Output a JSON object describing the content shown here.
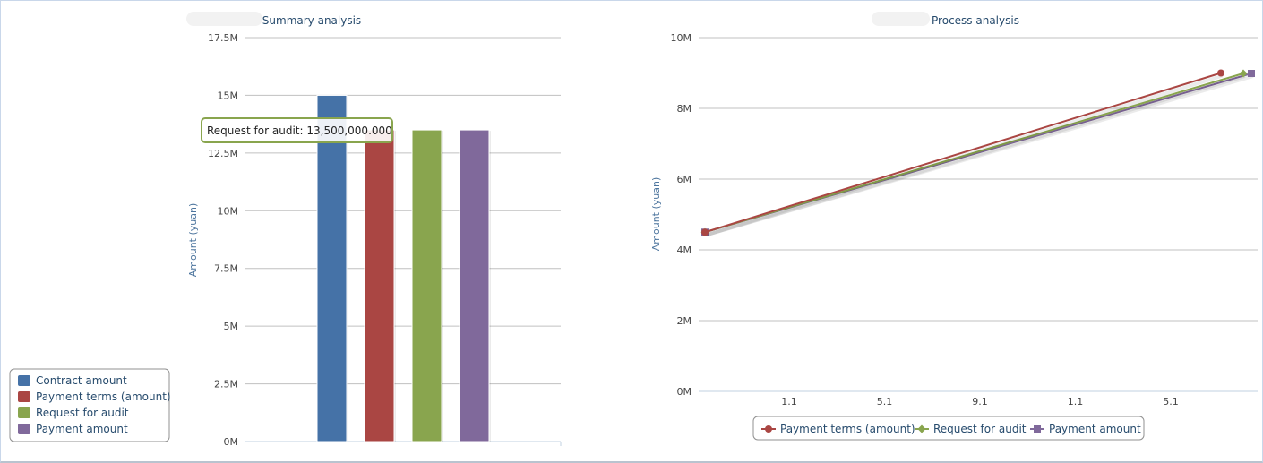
{
  "chart_data": [
    {
      "type": "bar",
      "title": "Summary analysis",
      "ylabel": "Amount (yuan)",
      "ylim": [
        0,
        17500000
      ],
      "yticks": [
        "0M",
        "2.5M",
        "5M",
        "7.5M",
        "10M",
        "12.5M",
        "15M",
        "17.5M"
      ],
      "grid": true,
      "legend_placement": "bottom-left",
      "series": [
        {
          "name": "Contract amount",
          "color": "#4572a7",
          "values": [
            15000000
          ]
        },
        {
          "name": "Payment terms (amount)",
          "color": "#aa4643",
          "values": [
            13500000
          ]
        },
        {
          "name": "Request for audit",
          "color": "#89a54e",
          "values": [
            13500000
          ]
        },
        {
          "name": "Payment amount",
          "color": "#80699b",
          "values": [
            13500000
          ]
        }
      ],
      "tooltip": {
        "series": "Request for audit",
        "value": "13,500,000.000",
        "border_color": "#89a54e"
      }
    },
    {
      "type": "line",
      "title": "Process analysis",
      "ylabel": "Amount (yuan)",
      "ylim": [
        0,
        10000000
      ],
      "yticks": [
        "0M",
        "2M",
        "4M",
        "6M",
        "8M",
        "10M"
      ],
      "xticks": [
        "1.1",
        "5.1",
        "9.1",
        "1.1",
        "5.1"
      ],
      "grid": true,
      "legend_placement": "bottom-center",
      "series": [
        {
          "name": "Payment terms (amount)",
          "color": "#aa4643",
          "marker": "circle",
          "values": [
            4500000,
            9000000
          ]
        },
        {
          "name": "Request for audit",
          "color": "#89a54e",
          "marker": "diamond",
          "values": [
            4500000,
            9000000
          ]
        },
        {
          "name": "Payment amount",
          "color": "#80699b",
          "marker": "square",
          "values": [
            4500000,
            9000000
          ]
        }
      ]
    }
  ]
}
